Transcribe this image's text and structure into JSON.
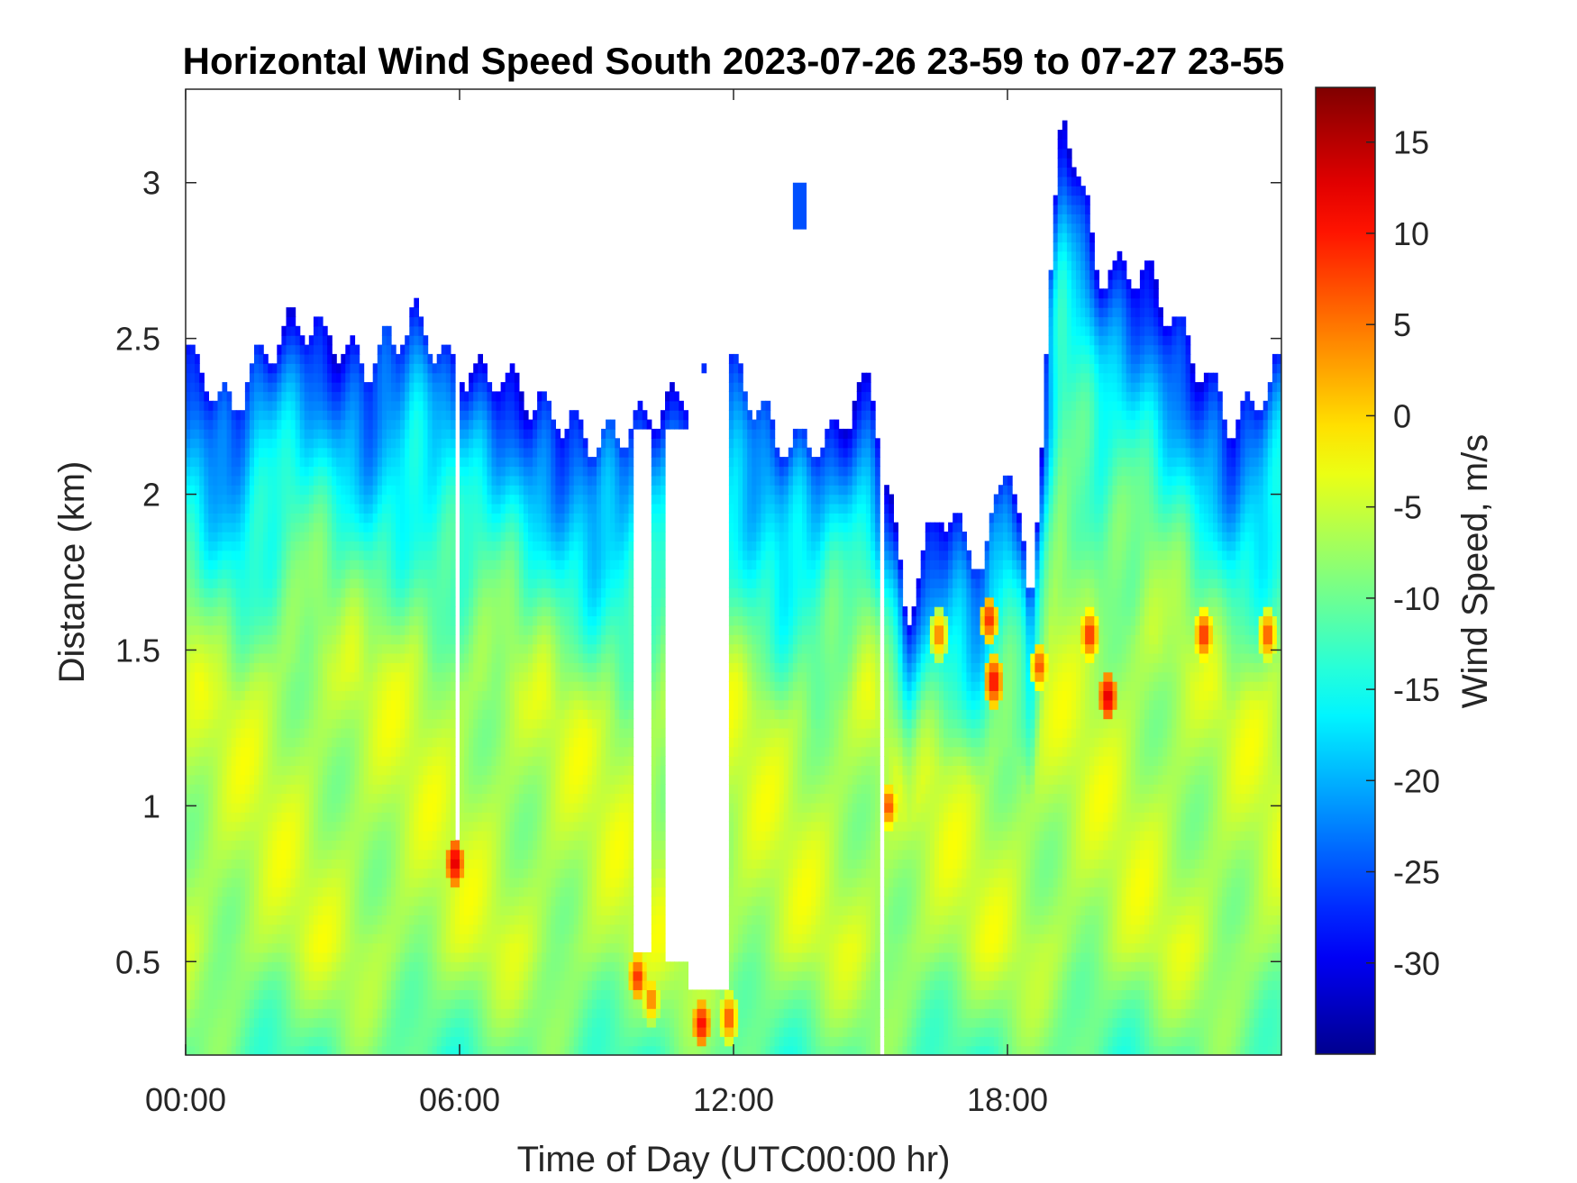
{
  "chart_data": {
    "type": "heatmap",
    "title": "Horizontal Wind Speed South 2023-07-26 23-59 to 07-27 23-55",
    "xlabel": "Time of Day (UTC00:00 hr)",
    "ylabel": "Distance (km)",
    "colorbar_label": "Wind Speed, m/s",
    "x_ticks": [
      "00:00",
      "06:00",
      "12:00",
      "18:00"
    ],
    "x_tick_hours": [
      0,
      6,
      12,
      18
    ],
    "xlim_hours": [
      0,
      24
    ],
    "y_ticks": [
      "0.5",
      "1",
      "1.5",
      "2",
      "2.5",
      "3"
    ],
    "y_tick_values": [
      0.5,
      1,
      1.5,
      2,
      2.5,
      3
    ],
    "ylim": [
      0.2,
      3.3
    ],
    "colorbar_ticks": [
      "15",
      "10",
      "5",
      "0",
      "-5",
      "-10",
      "-15",
      "-20",
      "-25",
      "-30"
    ],
    "colorbar_tick_values": [
      15,
      10,
      5,
      0,
      -5,
      -10,
      -15,
      -20,
      -25,
      -30
    ],
    "clim": [
      -35,
      18
    ],
    "colormap": "jet",
    "colormap_stops": [
      "#00008f",
      "#0000ff",
      "#00ffff",
      "#ffff00",
      "#ff0000",
      "#800000"
    ],
    "column_interval_hours": 0.1,
    "top_of_data_km": [
      {
        "hour": 0.0,
        "top_km": 2.45
      },
      {
        "hour": 1.0,
        "top_km": 2.25
      },
      {
        "hour": 1.5,
        "top_km": 2.4
      },
      {
        "hour": 2.5,
        "top_km": 2.55
      },
      {
        "hour": 3.0,
        "top_km": 2.5
      },
      {
        "hour": 4.0,
        "top_km": 2.4
      },
      {
        "hour": 5.0,
        "top_km": 2.55
      },
      {
        "hour": 5.8,
        "top_km": 2.4
      },
      {
        "hour": 7.0,
        "top_km": 2.35
      },
      {
        "hour": 8.0,
        "top_km": 2.25
      },
      {
        "hour": 9.0,
        "top_km": 2.15
      },
      {
        "hour": 9.7,
        "top_km": 2.2
      },
      {
        "hour": 10.3,
        "top_km": 2.25
      },
      {
        "hour": 12.0,
        "top_km": 2.4
      },
      {
        "hour": 13.0,
        "top_km": 2.15
      },
      {
        "hour": 14.0,
        "top_km": 2.15
      },
      {
        "hour": 15.0,
        "top_km": 2.35
      },
      {
        "hour": 15.8,
        "top_km": 1.6
      },
      {
        "hour": 16.5,
        "top_km": 1.95
      },
      {
        "hour": 17.5,
        "top_km": 1.75
      },
      {
        "hour": 18.0,
        "top_km": 2.15
      },
      {
        "hour": 18.5,
        "top_km": 1.6
      },
      {
        "hour": 19.2,
        "top_km": 3.25
      },
      {
        "hour": 20.0,
        "top_km": 2.7
      },
      {
        "hour": 21.0,
        "top_km": 2.7
      },
      {
        "hour": 22.0,
        "top_km": 2.45
      },
      {
        "hour": 23.0,
        "top_km": 2.2
      },
      {
        "hour": 24.0,
        "top_km": 2.4
      }
    ],
    "gaps": [
      {
        "from_hour": 9.8,
        "to_hour": 10.2,
        "below_km": 2.2,
        "above_km": 0.52
      },
      {
        "from_hour": 10.5,
        "to_hour": 11.0,
        "below_km": 2.2,
        "above_km": 0.5
      },
      {
        "from_hour": 11.0,
        "to_hour": 11.9,
        "below_km": 2.4,
        "above_km": 0.4
      }
    ],
    "isolated_patch": {
      "from_hour": 13.3,
      "to_hour": 13.6,
      "from_km": 2.85,
      "to_km": 3.0,
      "value": -25
    },
    "hot_spots": [
      {
        "hour": 5.9,
        "km": 0.82,
        "value": 16
      },
      {
        "hour": 9.9,
        "km": 0.45,
        "value": 12
      },
      {
        "hour": 10.2,
        "km": 0.38,
        "value": 8
      },
      {
        "hour": 11.3,
        "km": 0.3,
        "value": 14
      },
      {
        "hour": 11.9,
        "km": 0.32,
        "value": 10
      },
      {
        "hour": 15.4,
        "km": 1.0,
        "value": 10
      },
      {
        "hour": 16.5,
        "km": 1.55,
        "value": 8
      },
      {
        "hour": 17.6,
        "km": 1.6,
        "value": 12
      },
      {
        "hour": 17.7,
        "km": 1.4,
        "value": 14
      },
      {
        "hour": 18.7,
        "km": 1.45,
        "value": 10
      },
      {
        "hour": 19.8,
        "km": 1.55,
        "value": 12
      },
      {
        "hour": 20.2,
        "km": 1.35,
        "value": 16
      },
      {
        "hour": 22.3,
        "km": 1.55,
        "value": 12
      },
      {
        "hour": 23.7,
        "km": 1.55,
        "value": 10
      }
    ]
  }
}
